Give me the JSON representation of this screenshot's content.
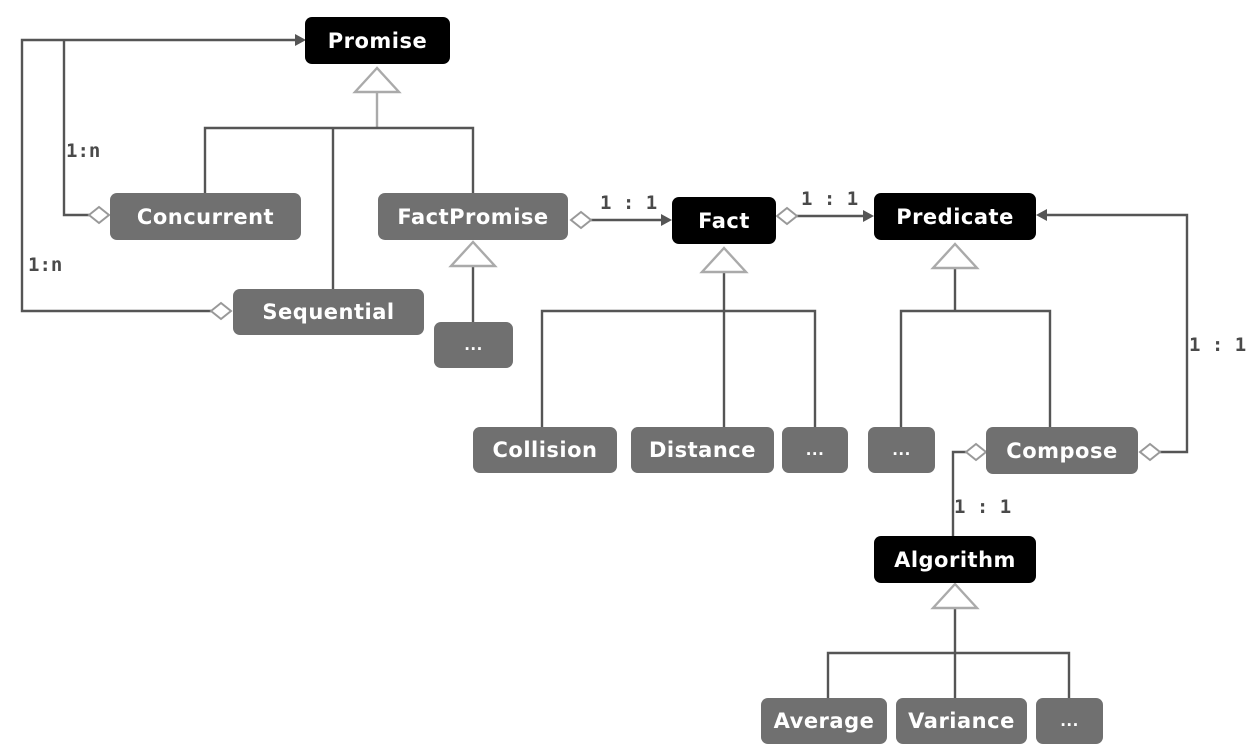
{
  "diagram": {
    "nodes": {
      "promise": {
        "label": "Promise",
        "kind": "abstract"
      },
      "concurrent": {
        "label": "Concurrent",
        "kind": "concrete"
      },
      "factpromise": {
        "label": "FactPromise",
        "kind": "concrete"
      },
      "sequential": {
        "label": "Sequential",
        "kind": "concrete"
      },
      "fp_more": {
        "label": "...",
        "kind": "concrete"
      },
      "fact": {
        "label": "Fact",
        "kind": "abstract"
      },
      "predicate": {
        "label": "Predicate",
        "kind": "abstract"
      },
      "collision": {
        "label": "Collision",
        "kind": "concrete"
      },
      "distance": {
        "label": "Distance",
        "kind": "concrete"
      },
      "fact_more": {
        "label": "...",
        "kind": "concrete"
      },
      "pred_more": {
        "label": "...",
        "kind": "concrete"
      },
      "compose": {
        "label": "Compose",
        "kind": "concrete"
      },
      "algorithm": {
        "label": "Algorithm",
        "kind": "abstract"
      },
      "average": {
        "label": "Average",
        "kind": "concrete"
      },
      "variance": {
        "label": "Variance",
        "kind": "concrete"
      },
      "algo_more": {
        "label": "...",
        "kind": "concrete"
      }
    },
    "multiplicities": {
      "concurrent_promise": "1:n",
      "sequential_promise": "1:n",
      "factpromise_fact": "1 : 1",
      "fact_predicate": "1 : 1",
      "compose_predicate": "1 : 1",
      "compose_algorithm": "1 : 1"
    },
    "colors": {
      "abstract_fill": "#000000",
      "concrete_fill": "#707070",
      "line": "#555555",
      "generalization_marker": "#aaaaaa"
    }
  }
}
